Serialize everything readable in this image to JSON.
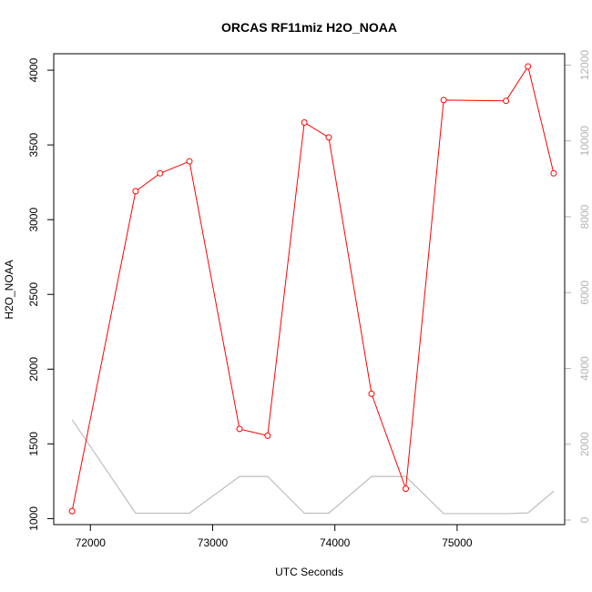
{
  "chart_data": {
    "type": "line",
    "title": "ORCAS RF11miz H2O_NOAA",
    "xlabel": "UTC Seconds",
    "ylabel": "H2O_NOAA",
    "xlim": [
      71700,
      75880
    ],
    "ylim": [
      960,
      4110
    ],
    "y2lim": [
      -120,
      12300
    ],
    "x_ticks": [
      72000,
      73000,
      74000,
      75000
    ],
    "y_ticks": [
      1000,
      1500,
      2000,
      2500,
      3000,
      3500,
      4000
    ],
    "y2_ticks": [
      0,
      2000,
      4000,
      6000,
      8000,
      10000,
      12000
    ],
    "primary_color": "#ff0000",
    "secondary_color": "#bebebe",
    "series": [
      {
        "axis": "left",
        "style": "line+points",
        "x": [
          71850,
          72370,
          72570,
          72810,
          73220,
          73450,
          73750,
          73950,
          74300,
          74580,
          74890,
          75400,
          75580,
          75790
        ],
        "values": [
          1050,
          3190,
          3310,
          3390,
          1600,
          1555,
          3650,
          3550,
          1835,
          1200,
          3800,
          3795,
          4025,
          3310
        ]
      },
      {
        "axis": "right",
        "style": "line",
        "x": [
          71850,
          72370,
          72810,
          73220,
          73450,
          73750,
          73950,
          74300,
          74580,
          74890,
          75400,
          75580,
          75790
        ],
        "values": [
          2650,
          180,
          180,
          1150,
          1150,
          180,
          180,
          1150,
          1150,
          170,
          170,
          190,
          760
        ]
      }
    ]
  }
}
